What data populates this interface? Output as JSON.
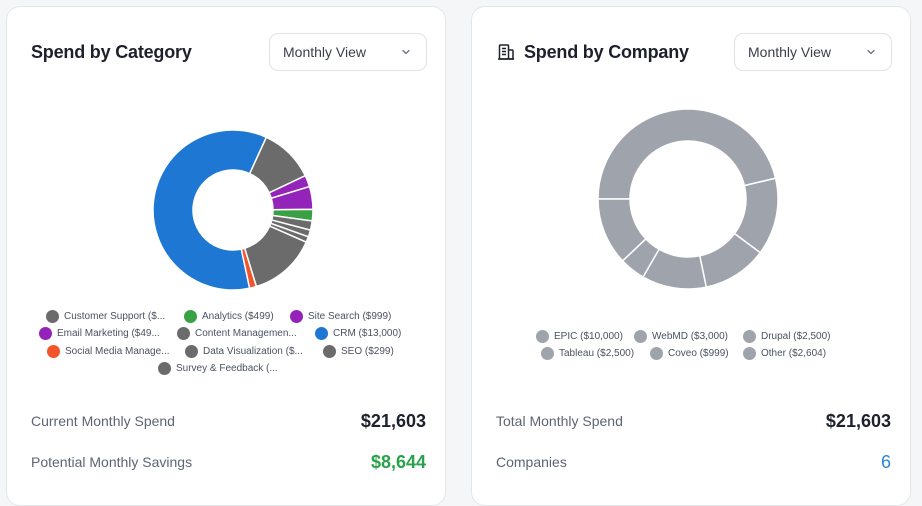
{
  "colors": {
    "blue": "#1f77d4",
    "gray": "#6b6b6b",
    "purple": "#9424b9",
    "green": "#39a043",
    "orange": "#f2552c",
    "company_gray": "#9ea3ac"
  },
  "category_card": {
    "title": "Spend by Category",
    "view_select": "Monthly View",
    "chart_data": {
      "type": "pie",
      "title": "Spend by Category",
      "slices": [
        {
          "label": "CRM ($13,000)",
          "value": 13000,
          "color": "#1f77d4"
        },
        {
          "label": "Customer Support ($...",
          "value": 2400,
          "color": "#6b6b6b"
        },
        {
          "label": "Email Marketing ($49...",
          "value": 499,
          "color": "#9424b9"
        },
        {
          "label": "Site Search ($999)",
          "value": 999,
          "color": "#9424b9"
        },
        {
          "label": "Analytics ($499)",
          "value": 499,
          "color": "#39a043"
        },
        {
          "label": "Content Managemen...",
          "value": 400,
          "color": "#6b6b6b"
        },
        {
          "label": "SEO ($299)",
          "value": 299,
          "color": "#6b6b6b"
        },
        {
          "label": "Survey & Feedback (...",
          "value": 250,
          "color": "#6b6b6b"
        },
        {
          "label": "Data Visualization ($...",
          "value": 2958,
          "color": "#6b6b6b"
        },
        {
          "label": "Social Media Manage...",
          "value": 299,
          "color": "#f2552c"
        }
      ]
    },
    "legend": [
      {
        "label": "Customer Support ($...",
        "color": "#6b6b6b"
      },
      {
        "label": "Analytics ($499)",
        "color": "#39a043"
      },
      {
        "label": "Site Search ($999)",
        "color": "#9424b9"
      },
      {
        "label": "Email Marketing ($49...",
        "color": "#9424b9"
      },
      {
        "label": "Content Managemen...",
        "color": "#6b6b6b"
      },
      {
        "label": "CRM ($13,000)",
        "color": "#1f77d4"
      },
      {
        "label": "Social Media Manage...",
        "color": "#f2552c"
      },
      {
        "label": "Data Visualization ($...",
        "color": "#6b6b6b"
      },
      {
        "label": "SEO ($299)",
        "color": "#6b6b6b"
      },
      {
        "label": "Survey & Feedback (...",
        "color": "#6b6b6b"
      }
    ],
    "stats": [
      {
        "label": "Current Monthly Spend",
        "value": "$21,603"
      },
      {
        "label": "Potential Monthly Savings",
        "value": "$8,644"
      }
    ]
  },
  "company_card": {
    "title": "Spend by Company",
    "icon": "building-icon",
    "view_select": "Monthly View",
    "chart_data": {
      "type": "pie",
      "title": "Spend by Company",
      "slices": [
        {
          "label": "EPIC ($10,000)",
          "value": 10000,
          "color": "#9ea3ac"
        },
        {
          "label": "WebMD ($3,000)",
          "value": 3000,
          "color": "#9ea3ac"
        },
        {
          "label": "Drupal ($2,500)",
          "value": 2500,
          "color": "#9ea3ac"
        },
        {
          "label": "Tableau ($2,500)",
          "value": 2500,
          "color": "#9ea3ac"
        },
        {
          "label": "Coveo ($999)",
          "value": 999,
          "color": "#9ea3ac"
        },
        {
          "label": "Other ($2,604)",
          "value": 2604,
          "color": "#9ea3ac"
        }
      ]
    },
    "legend": [
      {
        "label": "EPIC ($10,000)",
        "color": "#9ea3ac"
      },
      {
        "label": "WebMD ($3,000)",
        "color": "#9ea3ac"
      },
      {
        "label": "Drupal ($2,500)",
        "color": "#9ea3ac"
      },
      {
        "label": "Tableau ($2,500)",
        "color": "#9ea3ac"
      },
      {
        "label": "Coveo ($999)",
        "color": "#9ea3ac"
      },
      {
        "label": "Other ($2,604)",
        "color": "#9ea3ac"
      }
    ],
    "stats": [
      {
        "label": "Total Monthly Spend",
        "value": "$21,603"
      },
      {
        "label": "Companies",
        "value": "6"
      }
    ]
  }
}
